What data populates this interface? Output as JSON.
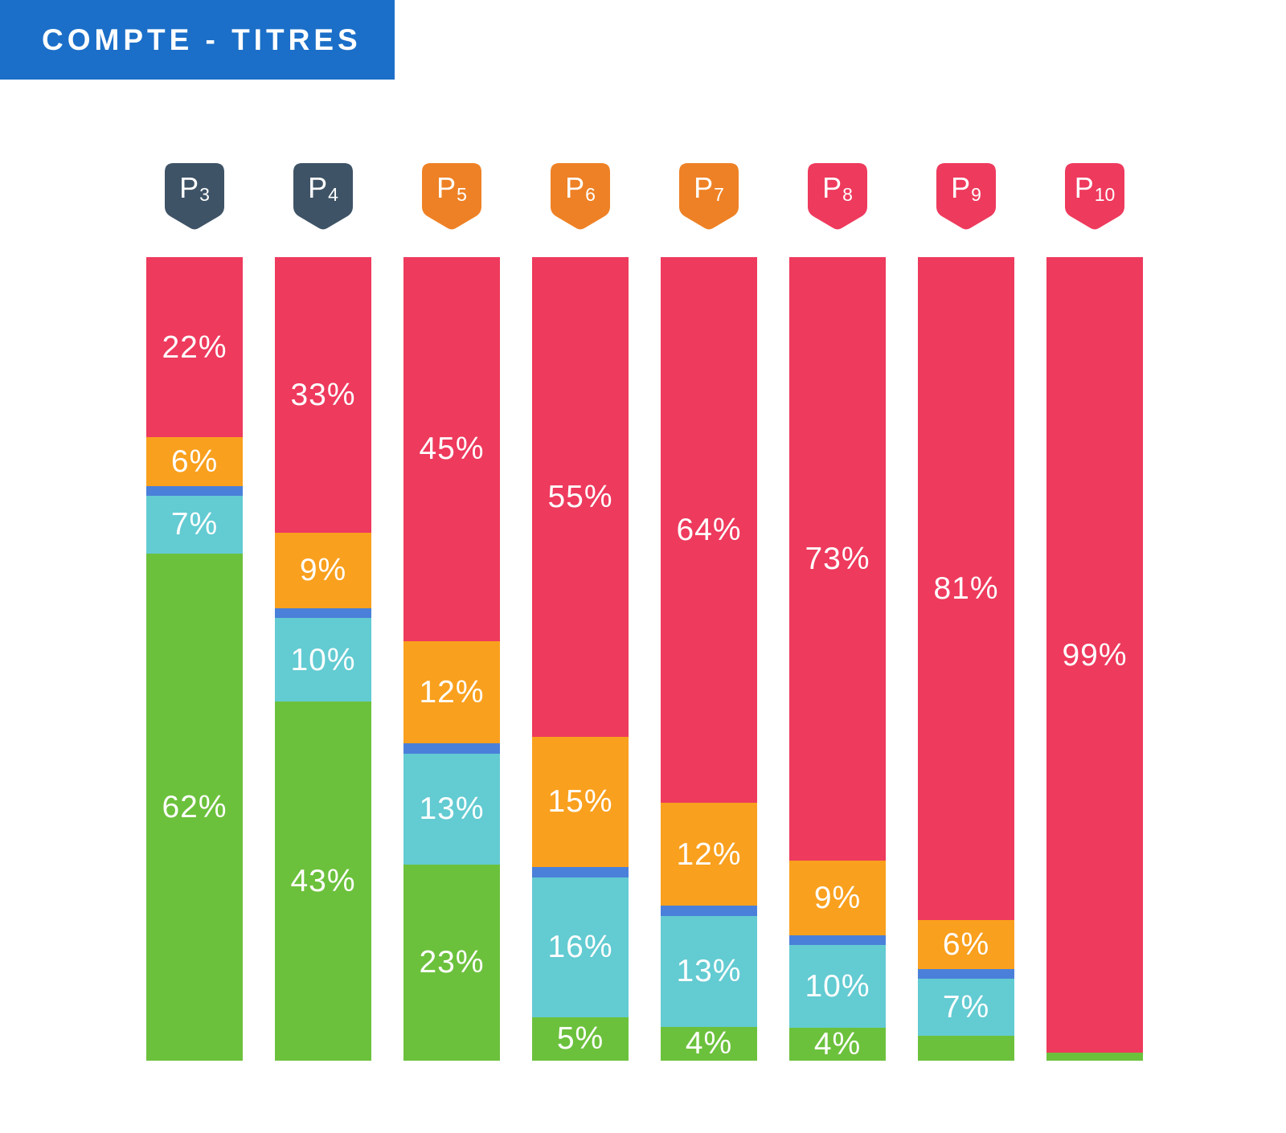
{
  "title": {
    "text": "COMPTE - TITRES"
  },
  "colors": {
    "title_bg": "#1B6FC8",
    "pink": "#EE3A5D",
    "orange": "#F9A01E",
    "blue": "#4A80D9",
    "teal": "#63CBD2",
    "green": "#6CC13C",
    "badge_slate": "#3E5366",
    "badge_orange": "#EE8125",
    "badge_pink": "#EE3A5D",
    "label_text": "#FFFFFF"
  },
  "chart_data": {
    "type": "bar",
    "variant": "stacked-vertical",
    "unit": "percent",
    "title": "COMPTE - TITRES",
    "xlabel": "",
    "ylabel": "",
    "legend": null,
    "grid": false,
    "segment_order": [
      "pink",
      "orange",
      "blue",
      "teal",
      "green"
    ],
    "categories": [
      "P3",
      "P4",
      "P5",
      "P6",
      "P7",
      "P8",
      "P9",
      "P10"
    ],
    "columns": [
      {
        "id": "P3",
        "badge": {
          "text": "P",
          "sub": "3",
          "color": "badge_slate"
        },
        "segments": [
          {
            "color": "pink",
            "value": 22,
            "label": "22%"
          },
          {
            "color": "orange",
            "value": 6,
            "label": "6%"
          },
          {
            "color": "blue",
            "value": 1.2,
            "label": null
          },
          {
            "color": "teal",
            "value": 7,
            "label": "7%"
          },
          {
            "color": "green",
            "value": 62,
            "label": "62%"
          }
        ]
      },
      {
        "id": "P4",
        "badge": {
          "text": "P",
          "sub": "4",
          "color": "badge_slate"
        },
        "segments": [
          {
            "color": "pink",
            "value": 33,
            "label": "33%"
          },
          {
            "color": "orange",
            "value": 9,
            "label": "9%"
          },
          {
            "color": "blue",
            "value": 1.2,
            "label": null
          },
          {
            "color": "teal",
            "value": 10,
            "label": "10%"
          },
          {
            "color": "green",
            "value": 43,
            "label": "43%"
          }
        ]
      },
      {
        "id": "P5",
        "badge": {
          "text": "P",
          "sub": "5",
          "color": "badge_orange"
        },
        "segments": [
          {
            "color": "pink",
            "value": 45,
            "label": "45%"
          },
          {
            "color": "orange",
            "value": 12,
            "label": "12%"
          },
          {
            "color": "blue",
            "value": 1.2,
            "label": null
          },
          {
            "color": "teal",
            "value": 13,
            "label": "13%"
          },
          {
            "color": "green",
            "value": 23,
            "label": "23%"
          }
        ]
      },
      {
        "id": "P6",
        "badge": {
          "text": "P",
          "sub": "6",
          "color": "badge_orange"
        },
        "segments": [
          {
            "color": "pink",
            "value": 55,
            "label": "55%"
          },
          {
            "color": "orange",
            "value": 15,
            "label": "15%"
          },
          {
            "color": "blue",
            "value": 1.2,
            "label": null
          },
          {
            "color": "teal",
            "value": 16,
            "label": "16%"
          },
          {
            "color": "green",
            "value": 5,
            "label": "5%"
          }
        ]
      },
      {
        "id": "P7",
        "badge": {
          "text": "P",
          "sub": "7",
          "color": "badge_orange"
        },
        "segments": [
          {
            "color": "pink",
            "value": 64,
            "label": "64%"
          },
          {
            "color": "orange",
            "value": 12,
            "label": "12%"
          },
          {
            "color": "blue",
            "value": 1.2,
            "label": null
          },
          {
            "color": "teal",
            "value": 13,
            "label": "13%"
          },
          {
            "color": "green",
            "value": 4,
            "label": "4%"
          }
        ]
      },
      {
        "id": "P8",
        "badge": {
          "text": "P",
          "sub": "8",
          "color": "badge_pink"
        },
        "segments": [
          {
            "color": "pink",
            "value": 73,
            "label": "73%"
          },
          {
            "color": "orange",
            "value": 9,
            "label": "9%"
          },
          {
            "color": "blue",
            "value": 1.2,
            "label": null
          },
          {
            "color": "teal",
            "value": 10,
            "label": "10%"
          },
          {
            "color": "green",
            "value": 4,
            "label": "4%"
          }
        ]
      },
      {
        "id": "P9",
        "badge": {
          "text": "P",
          "sub": "9",
          "color": "badge_pink"
        },
        "segments": [
          {
            "color": "pink",
            "value": 81,
            "label": "81%"
          },
          {
            "color": "orange",
            "value": 6,
            "label": "6%"
          },
          {
            "color": "blue",
            "value": 1.2,
            "label": null
          },
          {
            "color": "teal",
            "value": 7,
            "label": "7%"
          },
          {
            "color": "green",
            "value": 3,
            "label": null
          }
        ]
      },
      {
        "id": "P10",
        "badge": {
          "text": "P",
          "sub": "10",
          "color": "badge_pink"
        },
        "segments": [
          {
            "color": "pink",
            "value": 99,
            "label": "99%"
          },
          {
            "color": "green",
            "value": 1,
            "label": null
          }
        ]
      }
    ]
  }
}
